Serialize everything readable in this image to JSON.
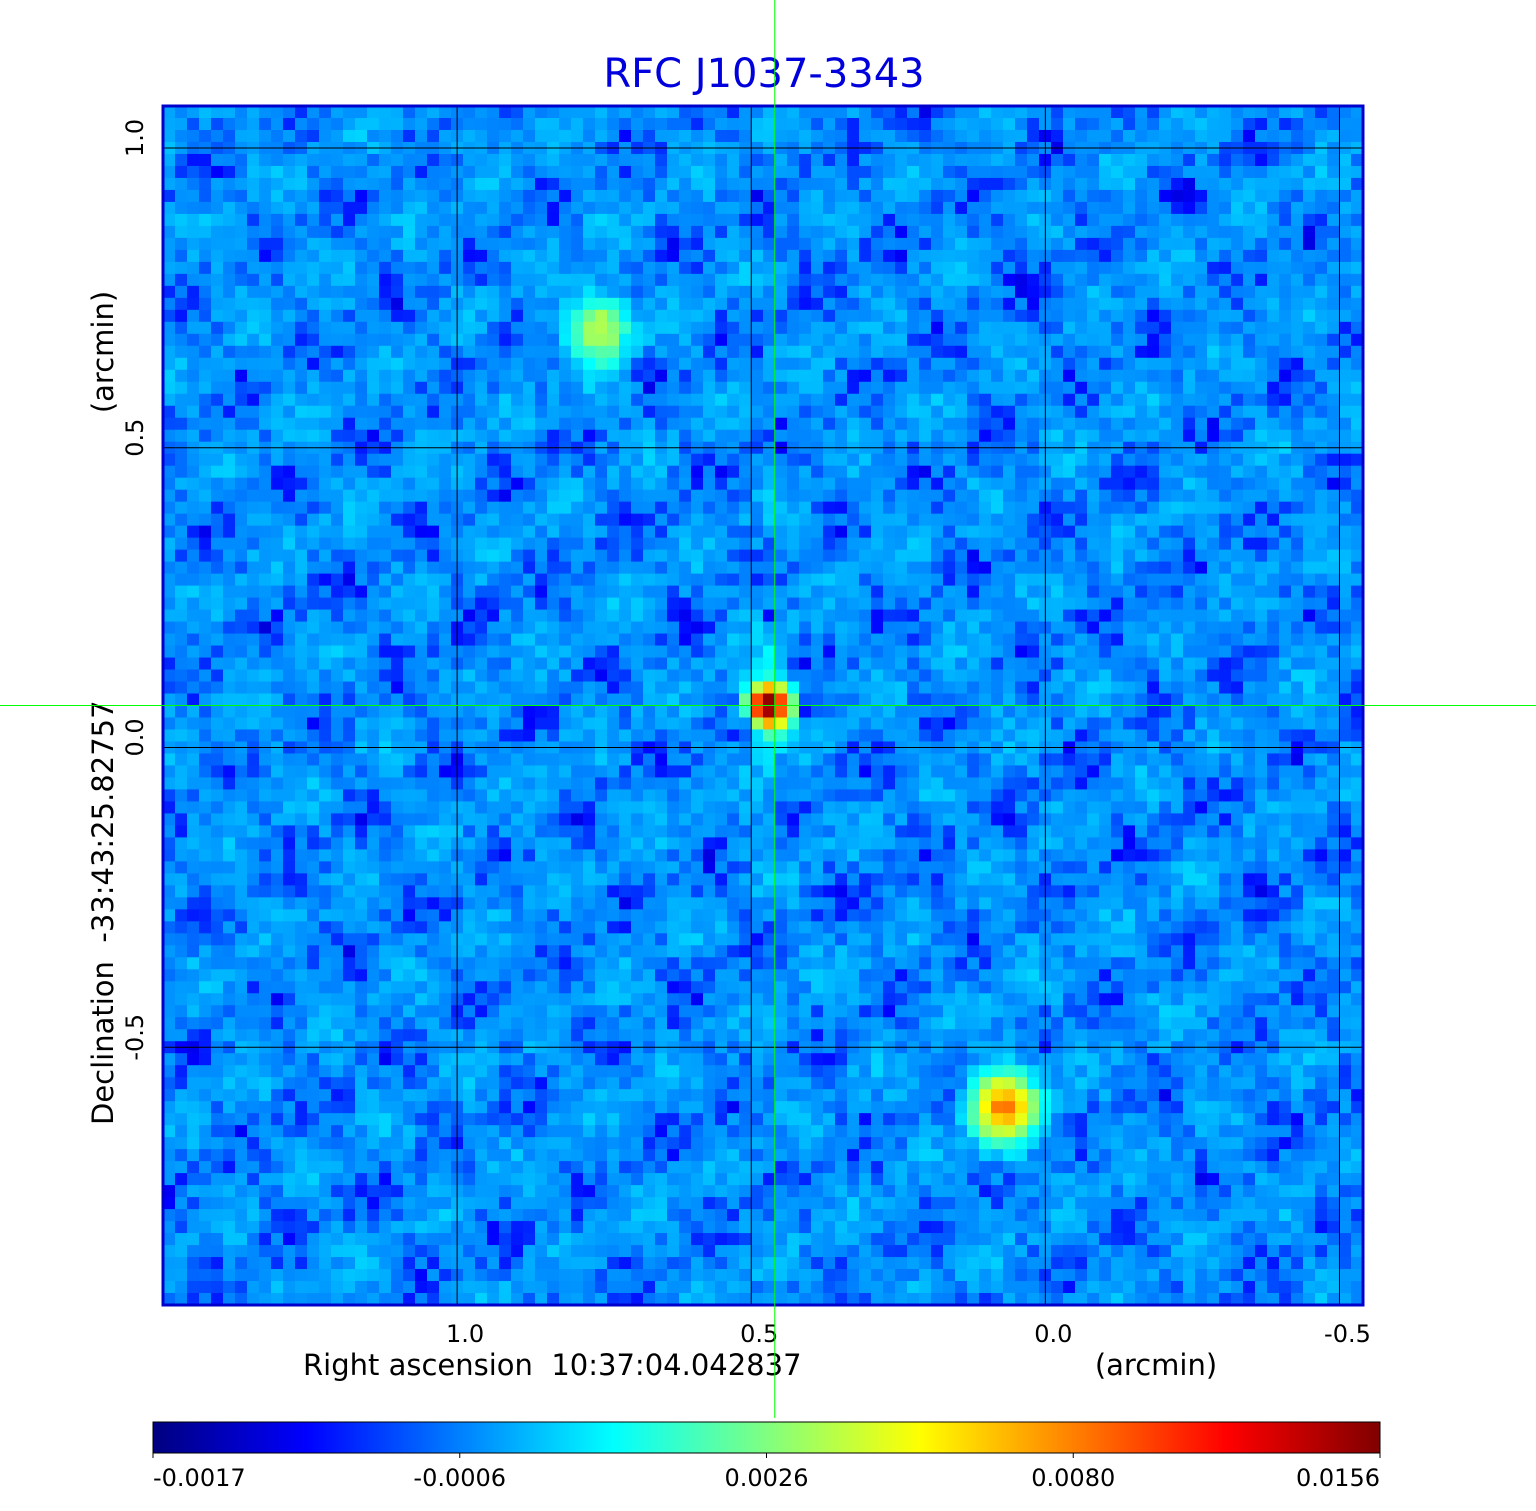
{
  "chart_data": {
    "type": "heatmap",
    "title": "RFC J1037-3343",
    "xlabel": "Right ascension  10:37:04.042837",
    "xunit": "(arcmin)",
    "ylabel": "Declination  -33:43:25.82757",
    "yunit": "(arcmin)",
    "xlim": [
      1.5,
      -0.54
    ],
    "ylim": [
      -0.93,
      1.07
    ],
    "x_ticks": [
      1.0,
      0.5,
      0.0,
      -0.5
    ],
    "x_tick_labels": [
      "1.0",
      "0.5",
      "0.0",
      "-0.5"
    ],
    "y_ticks": [
      1.0,
      0.5,
      0.0,
      -0.5
    ],
    "y_tick_labels": [
      "1.0",
      "0.5",
      "0.0",
      "-0.5"
    ],
    "grid": true,
    "colormap": "jet",
    "colorbar": {
      "range": [
        -0.0017,
        0.0156
      ],
      "tick_labels": [
        "-0.0017",
        "-0.0006",
        "0.0026",
        "0.0080",
        "0.0156"
      ],
      "tick_fractions": [
        0.0,
        0.25,
        0.5,
        0.75,
        1.0
      ],
      "colors": [
        "#000080",
        "#0000ff",
        "#0080ff",
        "#00ffff",
        "#80ff80",
        "#ffff00",
        "#ff8000",
        "#ff0000",
        "#800000"
      ]
    },
    "crosshair": {
      "x": 0.46,
      "y": 0.07,
      "color": "#00ff00"
    },
    "background_level": -0.0004,
    "sources": [
      {
        "name": "core",
        "x": 0.47,
        "y": 0.07,
        "peak": 0.0156
      },
      {
        "name": "north-east blob",
        "x": 0.76,
        "y": 0.7,
        "peak": 0.0035
      },
      {
        "name": "south-west blob",
        "x": 0.07,
        "y": -0.6,
        "peak": 0.0075
      }
    ],
    "negative_lobes": [
      {
        "x": 0.47,
        "y": 0.22,
        "value": -0.0014
      },
      {
        "x": 0.5,
        "y": 0.03,
        "value": -0.0013
      },
      {
        "x": 0.44,
        "y": -0.03,
        "value": -0.0013
      },
      {
        "x": 0.41,
        "y": 0.06,
        "value": -0.0012
      }
    ],
    "colors": {
      "title": "#0000dd",
      "frame": "#0000cc",
      "grid": "#000000",
      "axis_text": "#000000"
    }
  }
}
